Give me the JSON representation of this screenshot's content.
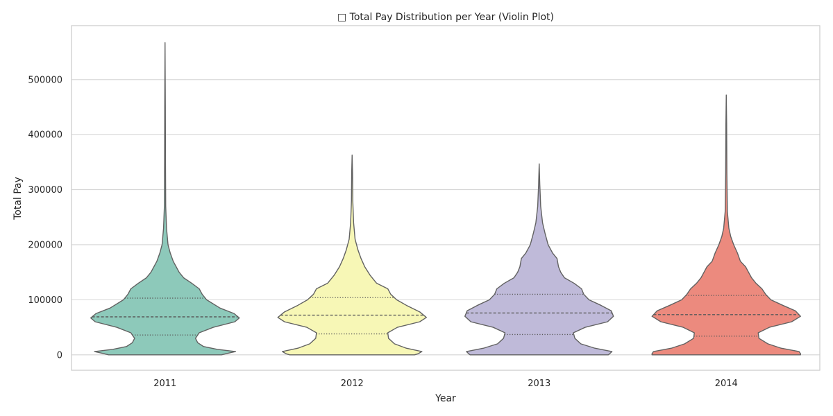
{
  "chart_data": {
    "type": "violin",
    "title": "□ Total Pay Distribution per Year (Violin Plot)",
    "xlabel": "Year",
    "ylabel": "Total Pay",
    "categories": [
      "2011",
      "2012",
      "2013",
      "2014"
    ],
    "ylim": [
      -28000,
      598000
    ],
    "yticks": [
      0,
      100000,
      200000,
      300000,
      400000,
      500000
    ],
    "ytick_labels": [
      "0",
      "100000",
      "200000",
      "300000",
      "400000",
      "500000"
    ],
    "grid": true,
    "legend": "none",
    "series": [
      {
        "category": "2011",
        "color": "#8dc9ba",
        "min": 0,
        "max": 567000,
        "quartiles": {
          "q1": 36000,
          "median": 69000,
          "q3": 103000
        },
        "density": [
          [
            0,
            0.76
          ],
          [
            2000,
            0.82
          ],
          [
            6000,
            0.95
          ],
          [
            10000,
            0.7
          ],
          [
            15000,
            0.52
          ],
          [
            22000,
            0.44
          ],
          [
            30000,
            0.41
          ],
          [
            40000,
            0.46
          ],
          [
            50000,
            0.65
          ],
          [
            60000,
            0.94
          ],
          [
            67000,
            1.0
          ],
          [
            75000,
            0.93
          ],
          [
            85000,
            0.74
          ],
          [
            100000,
            0.56
          ],
          [
            110000,
            0.5
          ],
          [
            120000,
            0.46
          ],
          [
            130000,
            0.36
          ],
          [
            140000,
            0.25
          ],
          [
            150000,
            0.19
          ],
          [
            160000,
            0.15
          ],
          [
            170000,
            0.11
          ],
          [
            185000,
            0.07
          ],
          [
            200000,
            0.04
          ],
          [
            230000,
            0.02
          ],
          [
            270000,
            0.009
          ],
          [
            350000,
            0.006
          ],
          [
            450000,
            0.004
          ],
          [
            567000,
            0.0
          ]
        ]
      },
      {
        "category": "2012",
        "color": "#f7f7b6",
        "min": 0,
        "max": 363000,
        "quartiles": {
          "q1": 38000,
          "median": 72000,
          "q3": 104000
        },
        "density": [
          [
            0,
            0.84
          ],
          [
            2000,
            0.89
          ],
          [
            6000,
            0.94
          ],
          [
            12000,
            0.73
          ],
          [
            20000,
            0.57
          ],
          [
            30000,
            0.49
          ],
          [
            40000,
            0.48
          ],
          [
            50000,
            0.61
          ],
          [
            60000,
            0.91
          ],
          [
            68000,
            1.0
          ],
          [
            78000,
            0.91
          ],
          [
            90000,
            0.73
          ],
          [
            100000,
            0.6
          ],
          [
            110000,
            0.52
          ],
          [
            120000,
            0.48
          ],
          [
            130000,
            0.33
          ],
          [
            145000,
            0.24
          ],
          [
            160000,
            0.17
          ],
          [
            175000,
            0.12
          ],
          [
            190000,
            0.08
          ],
          [
            210000,
            0.04
          ],
          [
            240000,
            0.02
          ],
          [
            280000,
            0.009
          ],
          [
            330000,
            0.006
          ],
          [
            363000,
            0.0
          ]
        ]
      },
      {
        "category": "2013",
        "color": "#bfbad9",
        "min": 0,
        "max": 347000,
        "quartiles": {
          "q1": 37000,
          "median": 76000,
          "q3": 110000
        },
        "density": [
          [
            0,
            0.93
          ],
          [
            2000,
            0.95
          ],
          [
            6000,
            0.98
          ],
          [
            12000,
            0.75
          ],
          [
            20000,
            0.56
          ],
          [
            30000,
            0.48
          ],
          [
            40000,
            0.46
          ],
          [
            50000,
            0.62
          ],
          [
            60000,
            0.92
          ],
          [
            70000,
            1.0
          ],
          [
            80000,
            0.97
          ],
          [
            90000,
            0.83
          ],
          [
            100000,
            0.67
          ],
          [
            110000,
            0.6
          ],
          [
            120000,
            0.57
          ],
          [
            130000,
            0.47
          ],
          [
            140000,
            0.34
          ],
          [
            150000,
            0.29
          ],
          [
            160000,
            0.26
          ],
          [
            175000,
            0.24
          ],
          [
            185000,
            0.18
          ],
          [
            200000,
            0.12
          ],
          [
            220000,
            0.08
          ],
          [
            240000,
            0.045
          ],
          [
            270000,
            0.02
          ],
          [
            310000,
            0.008
          ],
          [
            347000,
            0.0
          ]
        ]
      },
      {
        "category": "2014",
        "color": "#ec8a7e",
        "min": 0,
        "max": 472000,
        "quartiles": {
          "q1": 34000,
          "median": 73000,
          "q3": 108000
        },
        "density": [
          [
            0,
            1.0
          ],
          [
            2000,
            1.0
          ],
          [
            6000,
            0.98
          ],
          [
            12000,
            0.74
          ],
          [
            20000,
            0.56
          ],
          [
            30000,
            0.44
          ],
          [
            40000,
            0.43
          ],
          [
            50000,
            0.58
          ],
          [
            60000,
            0.88
          ],
          [
            70000,
            1.0
          ],
          [
            80000,
            0.93
          ],
          [
            90000,
            0.76
          ],
          [
            100000,
            0.6
          ],
          [
            110000,
            0.53
          ],
          [
            120000,
            0.48
          ],
          [
            130000,
            0.4
          ],
          [
            140000,
            0.34
          ],
          [
            150000,
            0.3
          ],
          [
            160000,
            0.26
          ],
          [
            170000,
            0.19
          ],
          [
            185000,
            0.15
          ],
          [
            200000,
            0.1
          ],
          [
            215000,
            0.06
          ],
          [
            230000,
            0.035
          ],
          [
            260000,
            0.015
          ],
          [
            330000,
            0.008
          ],
          [
            420000,
            0.005
          ],
          [
            472000,
            0.0
          ]
        ]
      }
    ]
  }
}
